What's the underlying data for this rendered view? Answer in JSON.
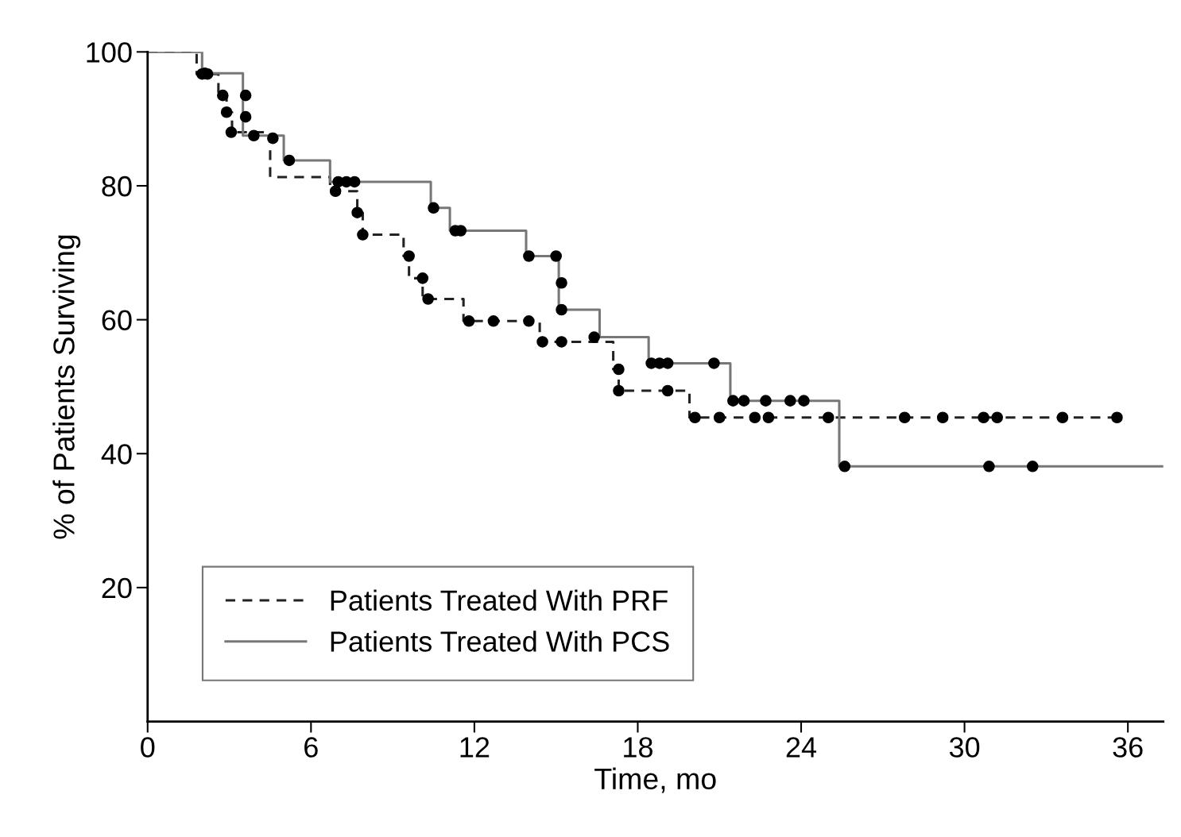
{
  "chart_data": {
    "type": "step",
    "xlabel": "Time, mo",
    "ylabel": "% of Patients Surviving",
    "xlim": [
      0,
      37.3
    ],
    "xticks": [
      0,
      6,
      12,
      18,
      24,
      30,
      36
    ],
    "ylim": [
      0,
      100
    ],
    "yticks": [
      20,
      40,
      60,
      80,
      100
    ],
    "grid": false,
    "legend": "bottom left",
    "series": [
      {
        "name": "Patients Treated With PRF",
        "line_style": "dashed",
        "color": "#222222",
        "x": [
          0,
          1.8,
          2.6,
          2.9,
          3.1,
          4.5,
          6.7,
          7.7,
          7.9,
          9.4,
          9.6,
          10.1,
          11.6,
          14.4,
          17.1,
          17.3,
          19.9,
          35.6
        ],
        "values": [
          100,
          96.7,
          93.5,
          91.0,
          88.0,
          81.3,
          79.2,
          76.0,
          72.7,
          69.5,
          66.2,
          63.1,
          59.8,
          56.7,
          52.6,
          49.4,
          45.4,
          45.4
        ]
      },
      {
        "name": "Patients Treated With PCS",
        "line_style": "solid",
        "color": "#777777",
        "x": [
          0,
          2.0,
          3.5,
          5.0,
          6.7,
          10.4,
          11.1,
          13.9,
          15.1,
          16.6,
          18.4,
          21.4,
          25.4,
          37.3
        ],
        "values": [
          100,
          96.8,
          87.5,
          83.8,
          80.6,
          76.7,
          73.3,
          69.5,
          61.5,
          57.4,
          53.5,
          47.9,
          38.1,
          38.1
        ]
      },
      {
        "type": "scatter",
        "marker": "circle",
        "color": "#000000",
        "x": [
          2.0,
          2.2,
          2.76,
          2.9,
          3.07,
          6.9,
          7.7,
          7.9,
          9.6,
          10.1,
          10.3,
          11.8,
          12.7,
          14.0,
          14.5,
          15.2,
          17.3,
          17.3,
          19.1,
          20.1,
          21.0,
          22.3,
          22.8,
          25.0,
          27.8,
          29.2,
          30.7,
          31.2,
          33.6,
          35.6
        ],
        "values": [
          96.7,
          96.7,
          93.5,
          91.0,
          88.0,
          79.2,
          76.0,
          72.7,
          69.5,
          66.2,
          63.1,
          59.8,
          59.8,
          59.8,
          56.7,
          56.7,
          52.6,
          49.4,
          49.4,
          45.4,
          45.4,
          45.4,
          45.4,
          45.4,
          45.4,
          45.4,
          45.4,
          45.4,
          45.4,
          45.4
        ]
      },
      {
        "type": "scatter",
        "marker": "circle",
        "color": "#000000",
        "x": [
          2.1,
          3.6,
          3.6,
          3.9,
          4.6,
          5.2,
          7.0,
          7.3,
          7.6,
          10.5,
          11.3,
          11.5,
          14.0,
          15.0,
          15.2,
          15.2,
          16.4,
          18.5,
          18.8,
          19.1,
          20.8,
          21.5,
          21.9,
          22.7,
          23.6,
          24.1,
          25.6,
          30.9,
          32.5
        ],
        "values": [
          96.8,
          93.5,
          90.3,
          87.5,
          87.1,
          83.8,
          80.6,
          80.6,
          80.6,
          76.7,
          73.3,
          73.3,
          69.5,
          69.5,
          65.5,
          61.5,
          57.4,
          53.5,
          53.5,
          53.5,
          53.5,
          47.9,
          47.9,
          47.9,
          47.9,
          47.9,
          38.1,
          38.1,
          38.1
        ]
      }
    ]
  }
}
